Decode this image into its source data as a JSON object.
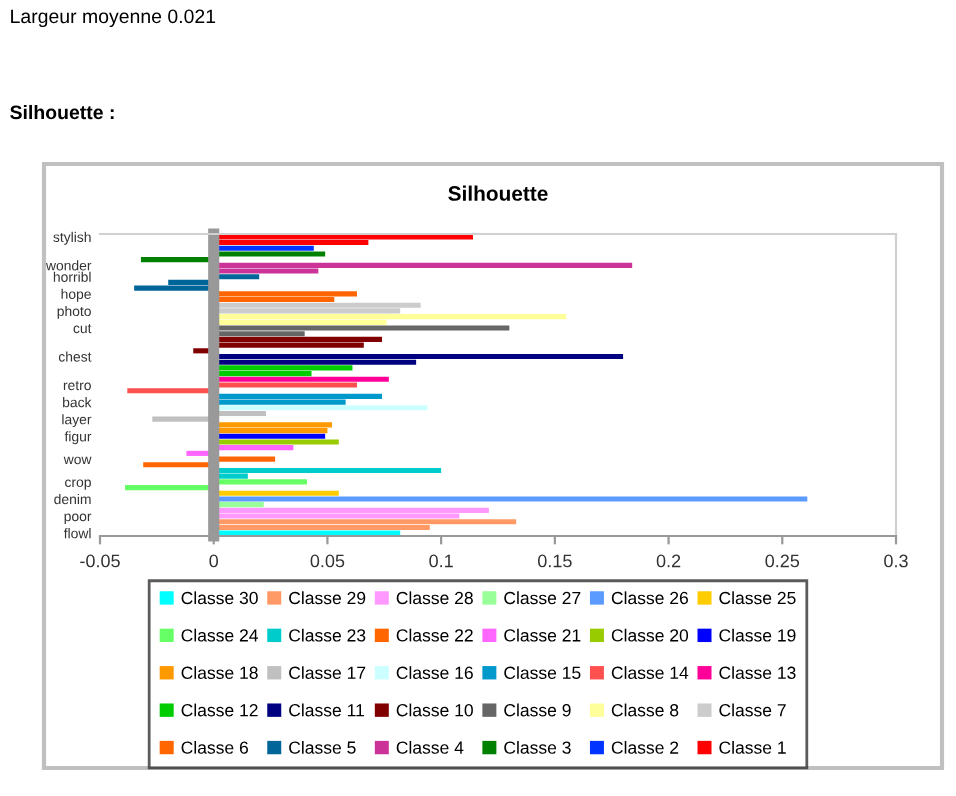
{
  "chart_data": {
    "type": "bar",
    "orientation": "horizontal",
    "title": "Silhouette",
    "annotations": [
      "Largeur moyenne 0.021",
      "Silhouette :"
    ],
    "categories": [
      "stylish",
      null,
      null,
      null,
      null,
      "wonder",
      null,
      "horribl",
      null,
      null,
      "hope",
      null,
      null,
      "photo",
      null,
      null,
      "cut",
      null,
      null,
      null,
      null,
      "chest",
      null,
      null,
      null,
      null,
      "retro",
      null,
      null,
      "back",
      null,
      null,
      "layer",
      null,
      null,
      "figur",
      null,
      null,
      null,
      "wow",
      null,
      null,
      null,
      "crop",
      null,
      null,
      "denim",
      null,
      null,
      "poor",
      null,
      null,
      "flowl"
    ],
    "xlim": [
      -0.05,
      0.3
    ],
    "xticks": [
      -0.05,
      0,
      0.05,
      0.1,
      0.15,
      0.2,
      0.25,
      0.3
    ],
    "legend": "bottom",
    "series": [
      {
        "name": "Classe 30",
        "color": "#00ffff",
        "values": [
          null,
          null,
          null,
          null,
          null,
          null,
          null,
          null,
          null,
          null,
          null,
          null,
          null,
          null,
          null,
          null,
          null,
          null,
          null,
          null,
          null,
          null,
          null,
          null,
          null,
          null,
          null,
          null,
          null,
          null,
          null,
          null,
          null,
          null,
          null,
          null,
          null,
          null,
          null,
          null,
          null,
          null,
          null,
          null,
          null,
          null,
          null,
          null,
          null,
          null,
          null,
          null,
          0.082
        ]
      },
      {
        "name": "Classe 29",
        "color": "#ff9966",
        "values": [
          null,
          null,
          null,
          null,
          null,
          null,
          null,
          null,
          null,
          null,
          null,
          null,
          null,
          null,
          null,
          null,
          null,
          null,
          null,
          null,
          null,
          null,
          null,
          null,
          null,
          null,
          null,
          null,
          null,
          null,
          null,
          null,
          null,
          null,
          null,
          null,
          null,
          null,
          null,
          null,
          null,
          null,
          null,
          null,
          null,
          null,
          null,
          null,
          null,
          null,
          0.133,
          0.095,
          null
        ]
      },
      {
        "name": "Classe 28",
        "color": "#ff99ff",
        "values": [
          null,
          null,
          null,
          null,
          null,
          null,
          null,
          null,
          null,
          null,
          null,
          null,
          null,
          null,
          null,
          null,
          null,
          null,
          null,
          null,
          null,
          null,
          null,
          null,
          null,
          null,
          null,
          null,
          null,
          null,
          null,
          null,
          null,
          null,
          null,
          null,
          null,
          null,
          null,
          null,
          null,
          null,
          null,
          null,
          null,
          null,
          null,
          null,
          0.121,
          0.108,
          null,
          null,
          null
        ]
      },
      {
        "name": "Classe 27",
        "color": "#99ff99",
        "values": [
          null,
          null,
          null,
          null,
          null,
          null,
          null,
          null,
          null,
          null,
          null,
          null,
          null,
          null,
          null,
          null,
          null,
          null,
          null,
          null,
          null,
          null,
          null,
          null,
          null,
          null,
          null,
          null,
          null,
          null,
          null,
          null,
          null,
          null,
          null,
          null,
          null,
          null,
          null,
          null,
          null,
          null,
          null,
          null,
          null,
          null,
          null,
          0.022,
          null,
          null,
          null,
          null,
          null
        ]
      },
      {
        "name": "Classe 26",
        "color": "#5b9bff",
        "values": [
          null,
          null,
          null,
          null,
          null,
          null,
          null,
          null,
          null,
          null,
          null,
          null,
          null,
          null,
          null,
          null,
          null,
          null,
          null,
          null,
          null,
          null,
          null,
          null,
          null,
          null,
          null,
          null,
          null,
          null,
          null,
          null,
          null,
          null,
          null,
          null,
          null,
          null,
          null,
          null,
          null,
          null,
          null,
          null,
          null,
          null,
          0.261,
          null,
          null,
          null,
          null,
          null,
          null
        ]
      },
      {
        "name": "Classe 25",
        "color": "#ffcc00",
        "values": [
          null,
          null,
          null,
          null,
          null,
          null,
          null,
          null,
          null,
          null,
          null,
          null,
          null,
          null,
          null,
          null,
          null,
          null,
          null,
          null,
          null,
          null,
          null,
          null,
          null,
          null,
          null,
          null,
          null,
          null,
          null,
          null,
          null,
          null,
          null,
          null,
          null,
          null,
          null,
          null,
          null,
          null,
          null,
          null,
          null,
          0.055,
          null,
          null,
          null,
          null,
          null,
          null,
          null
        ]
      },
      {
        "name": "Classe 24",
        "color": "#66ff66",
        "values": [
          null,
          null,
          null,
          null,
          null,
          null,
          null,
          null,
          null,
          null,
          null,
          null,
          null,
          null,
          null,
          null,
          null,
          null,
          null,
          null,
          null,
          null,
          null,
          null,
          null,
          null,
          null,
          null,
          null,
          null,
          null,
          null,
          null,
          null,
          null,
          null,
          null,
          null,
          null,
          null,
          null,
          null,
          null,
          0.041,
          -0.039,
          null,
          null,
          null,
          null,
          null,
          null,
          null,
          null
        ]
      },
      {
        "name": "Classe 23",
        "color": "#00cccc",
        "values": [
          null,
          null,
          null,
          null,
          null,
          null,
          null,
          null,
          null,
          null,
          null,
          null,
          null,
          null,
          null,
          null,
          null,
          null,
          null,
          null,
          null,
          null,
          null,
          null,
          null,
          null,
          null,
          null,
          null,
          null,
          null,
          null,
          null,
          null,
          null,
          null,
          null,
          null,
          null,
          null,
          null,
          0.1,
          0.015,
          null,
          null,
          null,
          null,
          null,
          null,
          null,
          null,
          null,
          null
        ]
      },
      {
        "name": "Classe 22",
        "color": "#ff6600",
        "values": [
          null,
          null,
          null,
          null,
          null,
          null,
          null,
          null,
          null,
          null,
          null,
          null,
          null,
          null,
          null,
          null,
          null,
          null,
          null,
          null,
          null,
          null,
          null,
          null,
          null,
          null,
          null,
          null,
          null,
          null,
          null,
          null,
          null,
          null,
          null,
          null,
          null,
          null,
          null,
          0.027,
          -0.031,
          null,
          null,
          null,
          null,
          null,
          null,
          null,
          null,
          null,
          null,
          null,
          null
        ]
      },
      {
        "name": "Classe 21",
        "color": "#ff66ff",
        "values": [
          null,
          null,
          null,
          null,
          null,
          null,
          null,
          null,
          null,
          null,
          null,
          null,
          null,
          null,
          null,
          null,
          null,
          null,
          null,
          null,
          null,
          null,
          null,
          null,
          null,
          null,
          null,
          null,
          null,
          null,
          null,
          null,
          null,
          null,
          null,
          null,
          null,
          0.035,
          -0.012,
          null,
          null,
          null,
          null,
          null,
          null,
          null,
          null,
          null,
          null,
          null,
          null,
          null,
          null
        ]
      },
      {
        "name": "Classe 20",
        "color": "#99cc00",
        "values": [
          null,
          null,
          null,
          null,
          null,
          null,
          null,
          null,
          null,
          null,
          null,
          null,
          null,
          null,
          null,
          null,
          null,
          null,
          null,
          null,
          null,
          null,
          null,
          null,
          null,
          null,
          null,
          null,
          null,
          null,
          null,
          null,
          null,
          null,
          null,
          null,
          0.055,
          null,
          null,
          null,
          null,
          null,
          null,
          null,
          null,
          null,
          null,
          null,
          null,
          null,
          null,
          null,
          null
        ]
      },
      {
        "name": "Classe 19",
        "color": "#0000ff",
        "values": [
          null,
          null,
          null,
          null,
          null,
          null,
          null,
          null,
          null,
          null,
          null,
          null,
          null,
          null,
          null,
          null,
          null,
          null,
          null,
          null,
          null,
          null,
          null,
          null,
          null,
          null,
          null,
          null,
          null,
          null,
          null,
          null,
          null,
          null,
          null,
          0.049,
          null,
          null,
          null,
          null,
          null,
          null,
          null,
          null,
          null,
          null,
          null,
          null,
          null,
          null,
          null,
          null,
          null
        ]
      },
      {
        "name": "Classe 18",
        "color": "#ff9900",
        "values": [
          null,
          null,
          null,
          null,
          null,
          null,
          null,
          null,
          null,
          null,
          null,
          null,
          null,
          null,
          null,
          null,
          null,
          null,
          null,
          null,
          null,
          null,
          null,
          null,
          null,
          null,
          null,
          null,
          null,
          null,
          null,
          null,
          null,
          0.052,
          0.05,
          null,
          null,
          null,
          null,
          null,
          null,
          null,
          null,
          null,
          null,
          null,
          null,
          null,
          null,
          null,
          null,
          null,
          null
        ]
      },
      {
        "name": "Classe 17",
        "color": "#c0c0c0",
        "values": [
          null,
          null,
          null,
          null,
          null,
          null,
          null,
          null,
          null,
          null,
          null,
          null,
          null,
          null,
          null,
          null,
          null,
          null,
          null,
          null,
          null,
          null,
          null,
          null,
          null,
          null,
          null,
          null,
          null,
          null,
          null,
          0.023,
          -0.027,
          null,
          null,
          null,
          null,
          null,
          null,
          null,
          null,
          null,
          null,
          null,
          null,
          null,
          null,
          null,
          null,
          null,
          null,
          null,
          null
        ]
      },
      {
        "name": "Classe 16",
        "color": "#ccffff",
        "values": [
          null,
          null,
          null,
          null,
          null,
          null,
          null,
          null,
          null,
          null,
          null,
          null,
          null,
          null,
          null,
          null,
          null,
          null,
          null,
          null,
          null,
          null,
          null,
          null,
          null,
          null,
          null,
          null,
          null,
          null,
          0.094,
          null,
          null,
          null,
          null,
          null,
          null,
          null,
          null,
          null,
          null,
          null,
          null,
          null,
          null,
          null,
          null,
          null,
          null,
          null,
          null,
          null,
          null
        ]
      },
      {
        "name": "Classe 15",
        "color": "#0099cc",
        "values": [
          null,
          null,
          null,
          null,
          null,
          null,
          null,
          null,
          null,
          null,
          null,
          null,
          null,
          null,
          null,
          null,
          null,
          null,
          null,
          null,
          null,
          null,
          null,
          null,
          null,
          null,
          null,
          null,
          0.074,
          0.058,
          null,
          null,
          null,
          null,
          null,
          null,
          null,
          null,
          null,
          null,
          null,
          null,
          null,
          null,
          null,
          null,
          null,
          null,
          null,
          null,
          null,
          null,
          null
        ]
      },
      {
        "name": "Classe 14",
        "color": "#ff5050",
        "values": [
          null,
          null,
          null,
          null,
          null,
          null,
          null,
          null,
          null,
          null,
          null,
          null,
          null,
          null,
          null,
          null,
          null,
          null,
          null,
          null,
          null,
          null,
          null,
          null,
          null,
          null,
          0.063,
          -0.038,
          null,
          null,
          null,
          null,
          null,
          null,
          null,
          null,
          null,
          null,
          null,
          null,
          null,
          null,
          null,
          null,
          null,
          null,
          null,
          null,
          null,
          null,
          null,
          null,
          null
        ]
      },
      {
        "name": "Classe 13",
        "color": "#ff0099",
        "values": [
          null,
          null,
          null,
          null,
          null,
          null,
          null,
          null,
          null,
          null,
          null,
          null,
          null,
          null,
          null,
          null,
          null,
          null,
          null,
          null,
          null,
          null,
          null,
          null,
          null,
          0.077,
          null,
          null,
          null,
          null,
          null,
          null,
          null,
          null,
          null,
          null,
          null,
          null,
          null,
          null,
          null,
          null,
          null,
          null,
          null,
          null,
          null,
          null,
          null,
          null,
          null,
          null,
          null
        ]
      },
      {
        "name": "Classe 12",
        "color": "#00cc00",
        "values": [
          null,
          null,
          null,
          null,
          null,
          null,
          null,
          null,
          null,
          null,
          null,
          null,
          null,
          null,
          null,
          null,
          null,
          null,
          null,
          null,
          null,
          null,
          null,
          0.061,
          0.043,
          null,
          null,
          null,
          null,
          null,
          null,
          null,
          null,
          null,
          null,
          null,
          null,
          null,
          null,
          null,
          null,
          null,
          null,
          null,
          null,
          null,
          null,
          null,
          null,
          null,
          null,
          null,
          null
        ]
      },
      {
        "name": "Classe 11",
        "color": "#000080",
        "values": [
          null,
          null,
          null,
          null,
          null,
          null,
          null,
          null,
          null,
          null,
          null,
          null,
          null,
          null,
          null,
          null,
          null,
          null,
          null,
          null,
          null,
          0.18,
          0.089,
          null,
          null,
          null,
          null,
          null,
          null,
          null,
          null,
          null,
          null,
          null,
          null,
          null,
          null,
          null,
          null,
          null,
          null,
          null,
          null,
          null,
          null,
          null,
          null,
          null,
          null,
          null,
          null,
          null,
          null
        ]
      },
      {
        "name": "Classe 10",
        "color": "#800000",
        "values": [
          null,
          null,
          null,
          null,
          null,
          null,
          null,
          null,
          null,
          null,
          null,
          null,
          null,
          null,
          null,
          null,
          null,
          null,
          0.074,
          0.066,
          -0.009,
          null,
          null,
          null,
          null,
          null,
          null,
          null,
          null,
          null,
          null,
          null,
          null,
          null,
          null,
          null,
          null,
          null,
          null,
          null,
          null,
          null,
          null,
          null,
          null,
          null,
          null,
          null,
          null,
          null,
          null,
          null,
          null
        ]
      },
      {
        "name": "Classe 9",
        "color": "#666666",
        "values": [
          null,
          null,
          null,
          null,
          null,
          null,
          null,
          null,
          null,
          null,
          null,
          null,
          null,
          null,
          null,
          null,
          0.13,
          0.04,
          null,
          null,
          null,
          null,
          null,
          null,
          null,
          null,
          null,
          null,
          null,
          null,
          null,
          null,
          null,
          null,
          null,
          null,
          null,
          null,
          null,
          null,
          null,
          null,
          null,
          null,
          null,
          null,
          null,
          null,
          null,
          null,
          null,
          null,
          null
        ]
      },
      {
        "name": "Classe 8",
        "color": "#ffff99",
        "values": [
          null,
          null,
          null,
          null,
          null,
          null,
          null,
          null,
          null,
          null,
          null,
          null,
          null,
          null,
          0.155,
          0.076,
          null,
          null,
          null,
          null,
          null,
          null,
          null,
          null,
          null,
          null,
          null,
          null,
          null,
          null,
          null,
          null,
          null,
          null,
          null,
          null,
          null,
          null,
          null,
          null,
          null,
          null,
          null,
          null,
          null,
          null,
          null,
          null,
          null,
          null,
          null,
          null,
          null
        ]
      },
      {
        "name": "Classe 7",
        "color": "#cccccc",
        "values": [
          null,
          null,
          null,
          null,
          null,
          null,
          null,
          null,
          null,
          null,
          null,
          null,
          0.091,
          0.082,
          null,
          null,
          null,
          null,
          null,
          null,
          null,
          null,
          null,
          null,
          null,
          null,
          null,
          null,
          null,
          null,
          null,
          null,
          null,
          null,
          null,
          null,
          null,
          null,
          null,
          null,
          null,
          null,
          null,
          null,
          null,
          null,
          null,
          null,
          null,
          null,
          null,
          null,
          null
        ]
      },
      {
        "name": "Classe 6",
        "color": "#ff6600",
        "values": [
          null,
          null,
          null,
          null,
          null,
          null,
          null,
          null,
          null,
          null,
          0.063,
          0.053,
          null,
          null,
          null,
          null,
          null,
          null,
          null,
          null,
          null,
          null,
          null,
          null,
          null,
          null,
          null,
          null,
          null,
          null,
          null,
          null,
          null,
          null,
          null,
          null,
          null,
          null,
          null,
          null,
          null,
          null,
          null,
          null,
          null,
          null,
          null,
          null,
          null,
          null,
          null,
          null,
          null
        ]
      },
      {
        "name": "Classe 5",
        "color": "#006699",
        "values": [
          null,
          null,
          null,
          null,
          null,
          null,
          null,
          0.02,
          -0.02,
          -0.035,
          null,
          null,
          null,
          null,
          null,
          null,
          null,
          null,
          null,
          null,
          null,
          null,
          null,
          null,
          null,
          null,
          null,
          null,
          null,
          null,
          null,
          null,
          null,
          null,
          null,
          null,
          null,
          null,
          null,
          null,
          null,
          null,
          null,
          null,
          null,
          null,
          null,
          null,
          null,
          null,
          null,
          null,
          null
        ]
      },
      {
        "name": "Classe 4",
        "color": "#cc3399",
        "values": [
          null,
          null,
          null,
          null,
          null,
          0.184,
          0.046,
          null,
          null,
          null,
          null,
          null,
          null,
          null,
          null,
          null,
          null,
          null,
          null,
          null,
          null,
          null,
          null,
          null,
          null,
          null,
          null,
          null,
          null,
          null,
          null,
          null,
          null,
          null,
          null,
          null,
          null,
          null,
          null,
          null,
          null,
          null,
          null,
          null,
          null,
          null,
          null,
          null,
          null,
          null,
          null,
          null,
          null
        ]
      },
      {
        "name": "Classe 3",
        "color": "#008000",
        "values": [
          null,
          null,
          null,
          0.049,
          -0.032,
          null,
          null,
          null,
          null,
          null,
          null,
          null,
          null,
          null,
          null,
          null,
          null,
          null,
          null,
          null,
          null,
          null,
          null,
          null,
          null,
          null,
          null,
          null,
          null,
          null,
          null,
          null,
          null,
          null,
          null,
          null,
          null,
          null,
          null,
          null,
          null,
          null,
          null,
          null,
          null,
          null,
          null,
          null,
          null,
          null,
          null,
          null,
          null
        ]
      },
      {
        "name": "Classe 2",
        "color": "#0033ff",
        "values": [
          null,
          null,
          0.044,
          null,
          null,
          null,
          null,
          null,
          null,
          null,
          null,
          null,
          null,
          null,
          null,
          null,
          null,
          null,
          null,
          null,
          null,
          null,
          null,
          null,
          null,
          null,
          null,
          null,
          null,
          null,
          null,
          null,
          null,
          null,
          null,
          null,
          null,
          null,
          null,
          null,
          null,
          null,
          null,
          null,
          null,
          null,
          null,
          null,
          null,
          null,
          null,
          null,
          null
        ]
      },
      {
        "name": "Classe 1",
        "color": "#ff0000",
        "values": [
          0.114,
          0.068,
          null,
          null,
          null,
          null,
          null,
          null,
          null,
          null,
          null,
          null,
          null,
          null,
          null,
          null,
          null,
          null,
          null,
          null,
          null,
          null,
          null,
          null,
          null,
          null,
          null,
          null,
          null,
          null,
          null,
          null,
          null,
          null,
          null,
          null,
          null,
          null,
          null,
          null,
          null,
          null,
          null,
          null,
          null,
          null,
          null,
          null,
          null,
          null,
          null,
          null,
          null
        ]
      }
    ]
  }
}
